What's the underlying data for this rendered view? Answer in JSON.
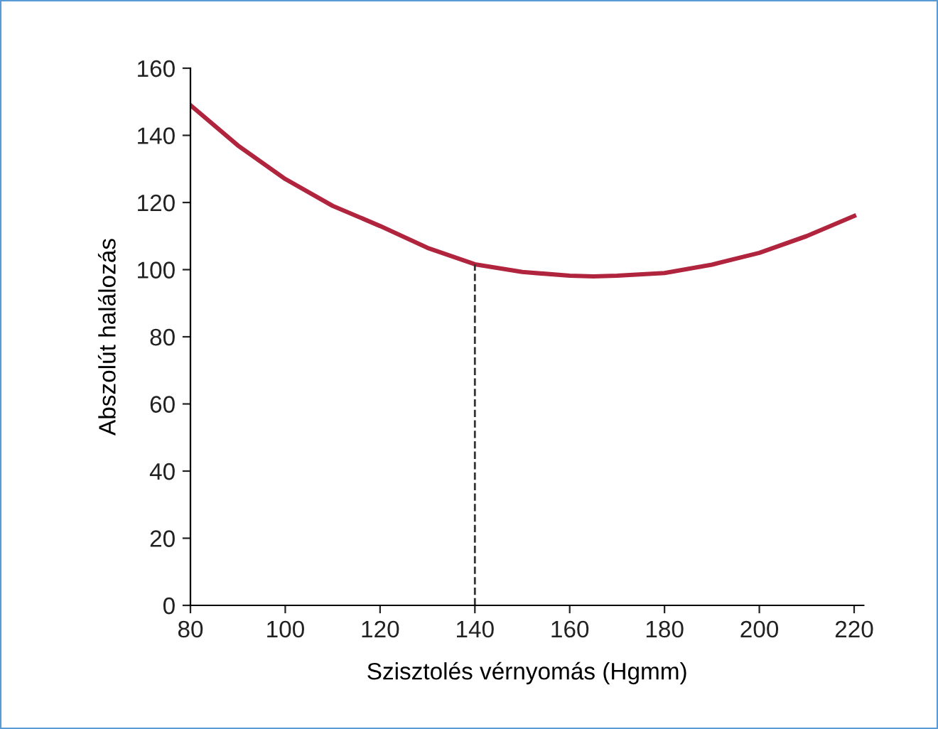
{
  "chart_data": {
    "type": "line",
    "xlabel": "Szisztolés vérnyomás (Hgmm)",
    "ylabel": "Abszolút halálozás",
    "x": [
      80,
      90,
      100,
      110,
      120,
      130,
      140,
      150,
      160,
      165,
      170,
      180,
      190,
      200,
      210,
      220
    ],
    "series": [
      {
        "color": "#b0253d",
        "values": [
          149,
          137,
          127,
          119,
          113,
          106.5,
          101.6,
          99.3,
          98.2,
          98,
          98.2,
          99,
          101.5,
          105,
          110,
          116
        ]
      }
    ],
    "xlim": [
      80,
      222
    ],
    "xticks": [
      80,
      100,
      120,
      140,
      160,
      180,
      200,
      220
    ],
    "ylim": [
      0,
      160
    ],
    "yticks": [
      0,
      20,
      40,
      60,
      80,
      100,
      120,
      140,
      160
    ],
    "ref_lines": [
      {
        "axis": "x",
        "value": 140,
        "line_style": "dashed",
        "color": "#333333"
      }
    ],
    "grid": false,
    "legend": false,
    "marker": "none",
    "line_style": "solid"
  }
}
